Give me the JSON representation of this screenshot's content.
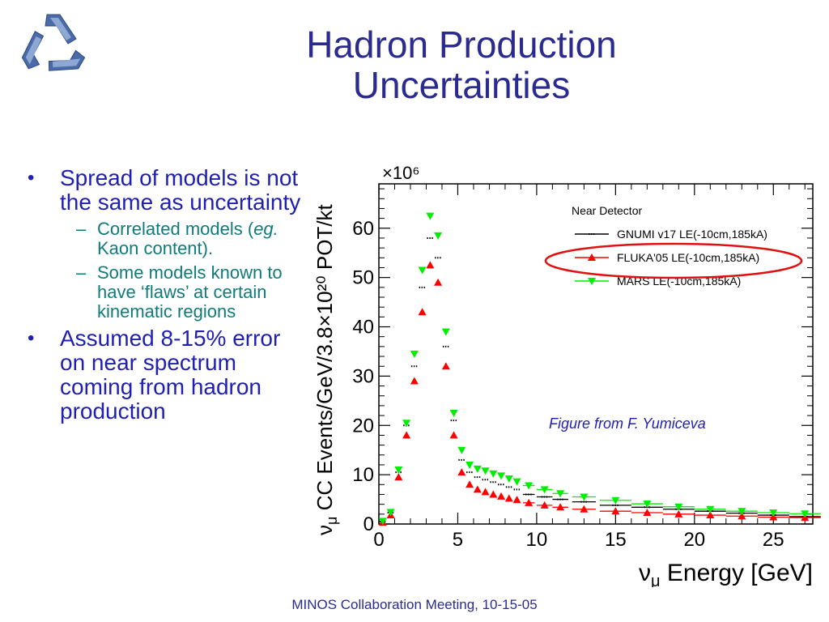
{
  "slide": {
    "title_line1": "Hadron Production",
    "title_line2": "Uncertainties",
    "footer": "MINOS Collaboration Meeting, 10-15-05"
  },
  "bullets": [
    {
      "text": "Spread of models is not the same as uncertainty",
      "subs": [
        {
          "pre": "Correlated models (",
          "em": "eg.",
          "post": " Kaon content)."
        },
        {
          "pre": "Some models known to have ‘flaws’ at certain kinematic regions",
          "em": "",
          "post": ""
        }
      ]
    },
    {
      "text": "Assumed 8-15% error on near spectrum coming from hadron production",
      "subs": []
    }
  ],
  "colors": {
    "title": "#2b2b8f",
    "bullet_main": "#1f1fb4",
    "bullet_sub": "#0f7b7b",
    "gnumi": "#000000",
    "fluka": "#ff0000",
    "mars": "#00ee00",
    "highlight_ellipse": "#e01010"
  },
  "chart_data": {
    "type": "scatter",
    "y_multiplier": "×10⁶",
    "xlabel": "ν",
    "xlabel_sub": "μ",
    "xlabel_rest": " Energy [GeV]",
    "ylabel": "ν",
    "ylabel_sub": "μ",
    "ylabel_rest": " CC Events/GeV/3.8×10²⁰ POT/kt",
    "xlim": [
      0,
      27.5
    ],
    "ylim": [
      0,
      69
    ],
    "x_ticks": [
      0,
      5,
      10,
      15,
      20,
      25
    ],
    "y_ticks": [
      0,
      10,
      20,
      30,
      40,
      50,
      60
    ],
    "legend_title": "Near Detector",
    "legend_position": "top-right",
    "annotation": "Figure from F. Yumiceva",
    "series": [
      {
        "name": "GNUMI v17 LE(-10cm,185kA)",
        "marker": "dash",
        "x": [
          0.25,
          0.75,
          1.25,
          1.75,
          2.25,
          2.75,
          3.25,
          3.75,
          4.25,
          4.75,
          5.25,
          5.75,
          6.25,
          6.75,
          7.25,
          7.75,
          8.25,
          8.75,
          9.5,
          10.5,
          11.5,
          13,
          15,
          17,
          19,
          21,
          23,
          25,
          27
        ],
        "y": [
          0.5,
          2.3,
          10.5,
          20,
          32,
          48,
          58,
          54,
          36,
          21,
          13,
          10.5,
          9.5,
          9,
          8.5,
          8,
          7.5,
          7,
          6,
          5.5,
          5,
          4.5,
          3.8,
          3.4,
          3,
          2.6,
          2.2,
          1.8,
          1.5
        ]
      },
      {
        "name": "FLUKA'05 LE(-10cm,185kA)",
        "marker": "triangle-up",
        "x": [
          0.25,
          0.75,
          1.25,
          1.75,
          2.25,
          2.75,
          3.25,
          3.75,
          4.25,
          4.75,
          5.25,
          5.75,
          6.25,
          6.75,
          7.25,
          7.75,
          8.25,
          8.75,
          9.5,
          10.5,
          11.5,
          13,
          15,
          17,
          19,
          21,
          23,
          25,
          27
        ],
        "y": [
          0.3,
          1.8,
          9.5,
          18,
          29,
          43,
          52.5,
          49,
          32,
          18,
          10.5,
          8,
          7,
          6.5,
          6,
          5.6,
          5.2,
          4.9,
          4.3,
          3.8,
          3.4,
          3,
          2.6,
          2.3,
          2,
          1.8,
          1.6,
          1.4,
          1.3
        ]
      },
      {
        "name": "MARS LE(-10cm,185kA)",
        "marker": "triangle-down",
        "x": [
          0.25,
          0.75,
          1.25,
          1.75,
          2.25,
          2.75,
          3.25,
          3.75,
          4.25,
          4.75,
          5.25,
          5.75,
          6.25,
          6.75,
          7.25,
          7.75,
          8.25,
          8.75,
          9.5,
          10.5,
          11.5,
          13,
          15,
          17,
          19,
          21,
          23,
          25,
          27
        ],
        "y": [
          0.6,
          2.4,
          11,
          20.5,
          34.5,
          51.5,
          62.5,
          58.5,
          39,
          22.5,
          15,
          12,
          11.2,
          10.8,
          10.2,
          9.8,
          9.2,
          8.6,
          7.8,
          7,
          6.2,
          5.5,
          4.8,
          4.1,
          3.5,
          3,
          2.6,
          2.3,
          2.1
        ]
      }
    ]
  }
}
